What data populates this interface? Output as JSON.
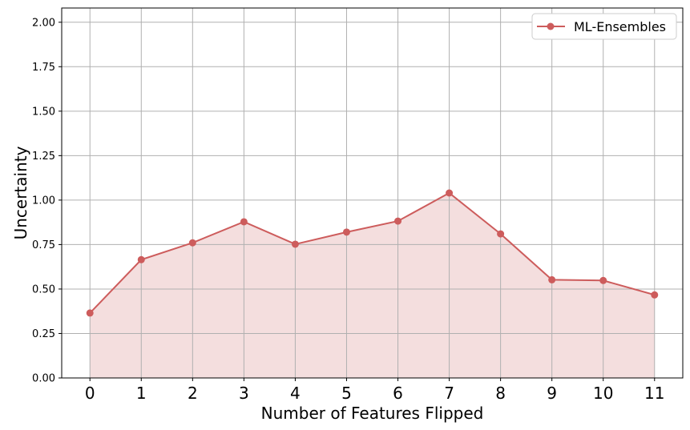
{
  "chart_data": {
    "type": "line",
    "title": "",
    "xlabel": "Number of Features Flipped",
    "ylabel": "Uncertainty",
    "x": [
      0,
      1,
      2,
      3,
      4,
      5,
      6,
      7,
      8,
      9,
      10,
      11
    ],
    "x_tick_labels": [
      "0",
      "1",
      "2",
      "3",
      "4",
      "5",
      "6",
      "7",
      "8",
      "9",
      "10",
      "11"
    ],
    "y_tick_labels": [
      "0.00",
      "0.25",
      "0.50",
      "0.75",
      "1.00",
      "1.25",
      "1.50",
      "1.75",
      "2.00"
    ],
    "y_ticks": [
      0,
      0.25,
      0.5,
      0.75,
      1.0,
      1.25,
      1.5,
      1.75,
      2.0
    ],
    "xlim": [
      -0.55,
      11.55
    ],
    "ylim": [
      0,
      2.08
    ],
    "grid": true,
    "legend_position": "top-right",
    "series": [
      {
        "name": "ML-Ensembles",
        "color": "#cd5c5c",
        "fill_color": "#f4dede",
        "marker": "circle",
        "values": [
          0.365,
          0.665,
          0.76,
          0.878,
          0.752,
          0.82,
          0.882,
          1.04,
          0.81,
          0.552,
          0.548,
          0.467
        ]
      }
    ]
  }
}
